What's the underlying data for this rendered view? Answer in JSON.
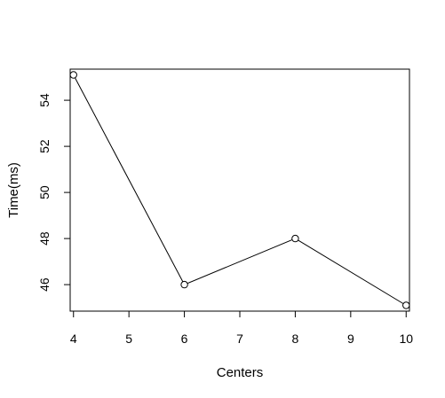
{
  "chart_data": {
    "type": "line",
    "title": "",
    "xlabel": "Centers",
    "ylabel": "Time(ms)",
    "x": [
      4,
      6,
      8,
      10
    ],
    "y": [
      55.1,
      46.0,
      48.0,
      45.1
    ],
    "xlim": [
      3.94,
      10.06
    ],
    "ylim": [
      44.85,
      55.35
    ],
    "xticks": [
      4,
      5,
      6,
      7,
      8,
      9,
      10
    ],
    "yticks": [
      46,
      48,
      50,
      52,
      54
    ],
    "marker": "open-circle",
    "grid": false,
    "line_color": "#000000"
  }
}
